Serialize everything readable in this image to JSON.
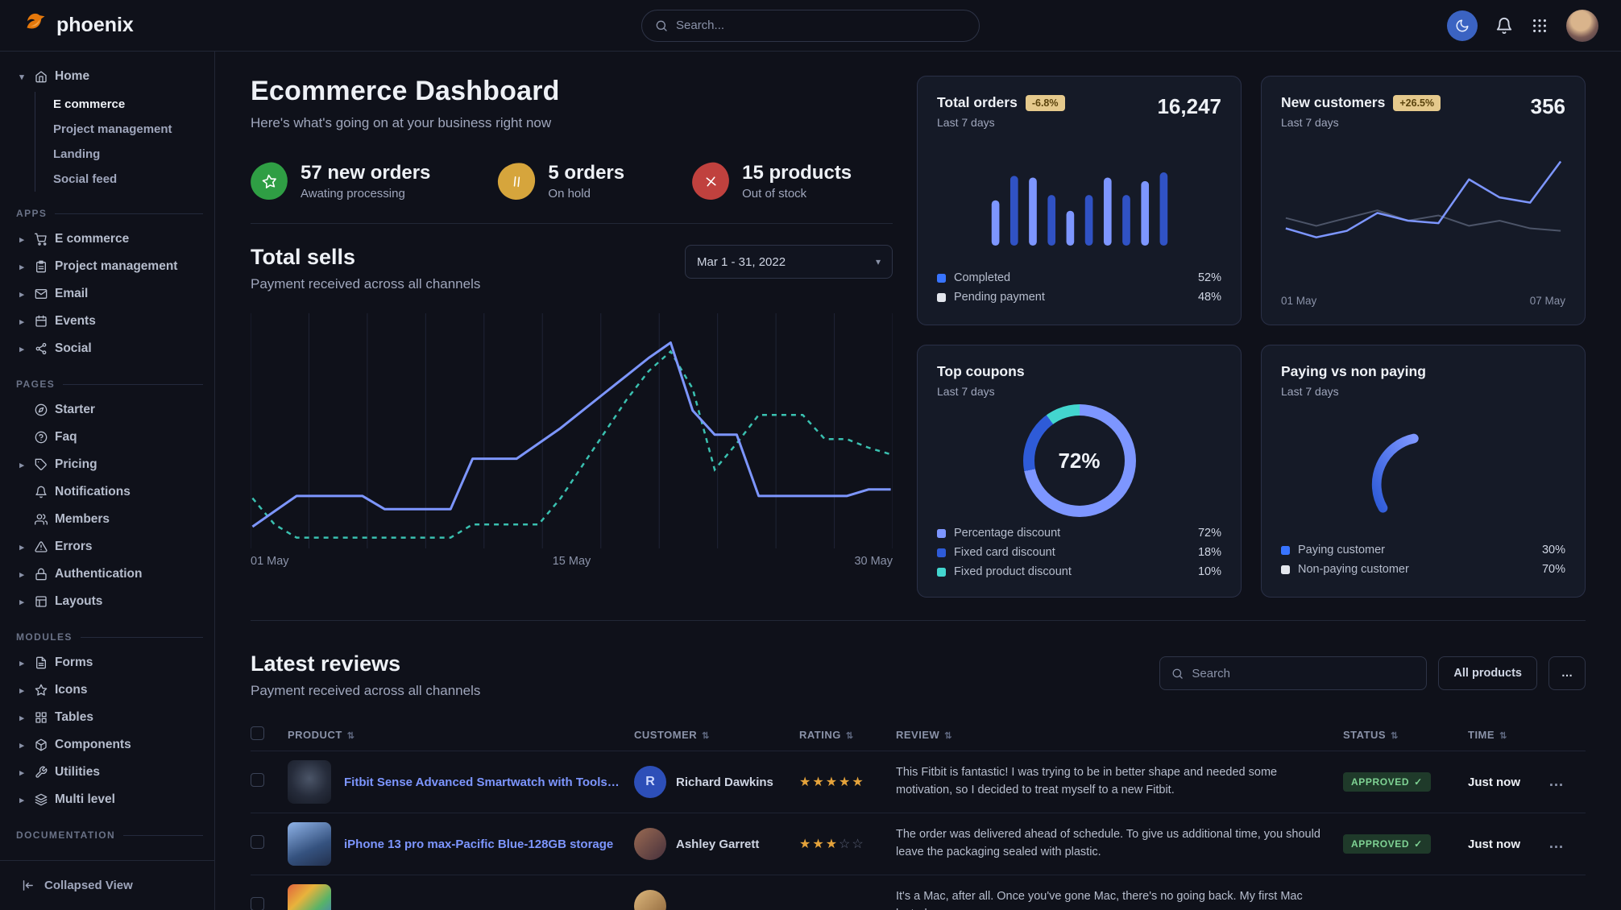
{
  "navbar": {
    "brand": "phoenix",
    "search_placeholder": "Search...",
    "brand_color": "#e5780b"
  },
  "sidebar": {
    "sections": [
      {
        "label": null,
        "items": [
          {
            "label": "Home",
            "icon": "home",
            "caret": "down",
            "children": [
              {
                "label": "E commerce",
                "active": true
              },
              {
                "label": "Project management"
              },
              {
                "label": "Landing"
              },
              {
                "label": "Social feed"
              }
            ]
          }
        ]
      },
      {
        "label": "APPS",
        "items": [
          {
            "label": "E commerce",
            "icon": "cart",
            "caret": "right"
          },
          {
            "label": "Project management",
            "icon": "clipboard",
            "caret": "right"
          },
          {
            "label": "Email",
            "icon": "mail",
            "caret": "right"
          },
          {
            "label": "Events",
            "icon": "calendar",
            "caret": "right"
          },
          {
            "label": "Social",
            "icon": "share",
            "caret": "right"
          }
        ]
      },
      {
        "label": "PAGES",
        "items": [
          {
            "label": "Starter",
            "icon": "compass"
          },
          {
            "label": "Faq",
            "icon": "help"
          },
          {
            "label": "Pricing",
            "icon": "tag",
            "caret": "right"
          },
          {
            "label": "Notifications",
            "icon": "bell"
          },
          {
            "label": "Members",
            "icon": "users"
          },
          {
            "label": "Errors",
            "icon": "alert",
            "caret": "right"
          },
          {
            "label": "Authentication",
            "icon": "lock",
            "caret": "right"
          },
          {
            "label": "Layouts",
            "icon": "layout",
            "caret": "right"
          }
        ]
      },
      {
        "label": "MODULES",
        "items": [
          {
            "label": "Forms",
            "icon": "file",
            "caret": "right"
          },
          {
            "label": "Icons",
            "icon": "star",
            "caret": "right"
          },
          {
            "label": "Tables",
            "icon": "grid",
            "caret": "right"
          },
          {
            "label": "Components",
            "icon": "box",
            "caret": "right"
          },
          {
            "label": "Utilities",
            "icon": "tool",
            "caret": "right"
          },
          {
            "label": "Multi level",
            "icon": "layers",
            "caret": "right"
          }
        ]
      },
      {
        "label": "DOCUMENTATION",
        "items": []
      }
    ],
    "footer": {
      "label": "Collapsed View",
      "icon": "collapse"
    }
  },
  "header": {
    "title": "Ecommerce Dashboard",
    "subtitle": "Here's what's going on at your business right now"
  },
  "stats": [
    {
      "value": "57 new orders",
      "caption": "Awating processing",
      "icon": "star",
      "color": "green"
    },
    {
      "value": "5 orders",
      "caption": "On hold",
      "icon": "pause",
      "color": "yellow"
    },
    {
      "value": "15 products",
      "caption": "Out of stock",
      "icon": "x",
      "color": "red"
    }
  ],
  "total_sells": {
    "title": "Total sells",
    "subtitle": "Payment received across all channels",
    "date_range": "Mar 1 - 31, 2022"
  },
  "cards": {
    "total_orders": {
      "title": "Total orders",
      "badge": "-6.8%",
      "period": "Last 7 days",
      "value": "16,247",
      "legend": [
        {
          "label": "Completed",
          "value": "52%",
          "color": "#3874ff"
        },
        {
          "label": "Pending payment",
          "value": "48%",
          "color": "#e3e6ed"
        }
      ]
    },
    "new_customers": {
      "title": "New customers",
      "badge": "+26.5%",
      "period": "Last 7 days",
      "value": "356"
    },
    "top_coupons": {
      "title": "Top coupons",
      "period": "Last 7 days"
    },
    "paying": {
      "title": "Paying vs non paying",
      "period": "Last 7 days",
      "legend": [
        {
          "label": "Paying customer",
          "value": "30%",
          "color": "#3874ff"
        },
        {
          "label": "Non-paying customer",
          "value": "70%",
          "color": "#e3e6ed"
        }
      ]
    }
  },
  "chart_data": [
    {
      "id": "total-sells",
      "type": "line",
      "title": "Total sells",
      "x_ticks": [
        "01 May",
        "15 May",
        "30 May"
      ],
      "ylim": [
        0,
        100
      ],
      "grid": "vertical",
      "series": [
        {
          "name": "current",
          "style": "solid",
          "color": "#7d96ff",
          "values": [
            7,
            14,
            21,
            21,
            21,
            21,
            15,
            15,
            15,
            15,
            38,
            38,
            38,
            45,
            52,
            60,
            68,
            76,
            84,
            91,
            60,
            49,
            49,
            21,
            21,
            21,
            21,
            21,
            24,
            24
          ]
        },
        {
          "name": "previous",
          "style": "dashed",
          "color": "#3ac0b0",
          "values": [
            20,
            8,
            2,
            2,
            2,
            2,
            2,
            2,
            2,
            2,
            8,
            8,
            8,
            8,
            20,
            35,
            50,
            65,
            78,
            87,
            70,
            33,
            45,
            58,
            58,
            58,
            47,
            47,
            43,
            40
          ]
        }
      ]
    },
    {
      "id": "total-orders",
      "type": "bar",
      "values": [
        52,
        80,
        78,
        58,
        40,
        58,
        78,
        58,
        74,
        84
      ],
      "colors": [
        "#7d96ff",
        "#3052c4"
      ]
    },
    {
      "id": "new-customers",
      "type": "line",
      "x_ticks": [
        "01 May",
        "07 May"
      ],
      "series": [
        {
          "name": "previous",
          "color": "#4c5468",
          "values": [
            48,
            42,
            48,
            54,
            46,
            50,
            42,
            46,
            40,
            38
          ]
        },
        {
          "name": "current",
          "color": "#7d96ff",
          "values": [
            40,
            33,
            38,
            52,
            46,
            44,
            78,
            64,
            60,
            92
          ]
        }
      ]
    },
    {
      "id": "top-coupons",
      "type": "donut",
      "center_label": "72%",
      "segments": [
        {
          "label": "Percentage discount",
          "value": 72,
          "color": "#7d96ff"
        },
        {
          "label": "Fixed card discount",
          "value": 18,
          "color": "#2e5bd8"
        },
        {
          "label": "Fixed product discount",
          "value": 10,
          "color": "#43d6cf"
        }
      ]
    },
    {
      "id": "paying-gauge",
      "type": "gauge",
      "value": 30,
      "color_start": "#2e5bd8",
      "color_end": "#7d96ff"
    }
  ],
  "reviews": {
    "title": "Latest reviews",
    "subtitle": "Payment received across all channels",
    "search_placeholder": "Search",
    "filter_label": "All products",
    "more_label": "…",
    "columns": [
      "PRODUCT",
      "CUSTOMER",
      "RATING",
      "REVIEW",
      "STATUS",
      "TIME"
    ],
    "rows": [
      {
        "product": "Fitbit Sense Advanced Smartwatch with Tools fo...",
        "customer": "Richard Dawkins",
        "avatar_type": "initial",
        "avatar_initial": "R",
        "rating": 5,
        "review": "This Fitbit is fantastic! I was trying to be in better shape and needed some motivation, so I decided to treat myself to a new Fitbit.",
        "status": "APPROVED",
        "time": "Just now",
        "thumb": "watch"
      },
      {
        "product": "iPhone 13 pro max-Pacific Blue-128GB storage",
        "customer": "Ashley Garrett",
        "avatar_type": "photo-a",
        "avatar_initial": "",
        "rating": 3,
        "review": "The order was delivered ahead of schedule. To give us additional time, you should leave the packaging sealed with plastic.",
        "status": "APPROVED",
        "time": "Just now",
        "thumb": "iphone"
      },
      {
        "product": "",
        "customer": "",
        "avatar_type": "photo-b",
        "avatar_initial": "",
        "rating": 0,
        "review": "It's a Mac, after all. Once you've gone Mac, there's no going back. My first Mac lasted",
        "status": "",
        "time": "",
        "thumb": "imac"
      }
    ]
  }
}
